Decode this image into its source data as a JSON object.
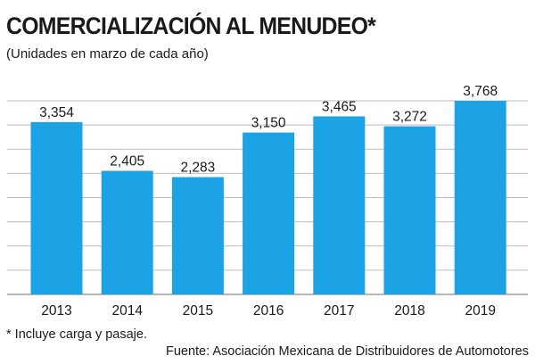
{
  "title": "COMERCIALIZACIÓN AL MENUDEO*",
  "subtitle": "(Unidades en marzo de cada año)",
  "footnote": "* Incluye carga y pasaje.",
  "source": "Fuente: Asociación Mexicana de Distribuidores de Automotores",
  "colors": {
    "bar": "#1ba3e6",
    "grid": "#bdbdbd",
    "background": "#ffffff"
  },
  "chart_data": {
    "type": "bar",
    "categories": [
      "2013",
      "2014",
      "2015",
      "2016",
      "2017",
      "2018",
      "2019"
    ],
    "values": [
      3354,
      2405,
      2283,
      3150,
      3465,
      3272,
      3768
    ],
    "value_labels": [
      "3,354",
      "2,405",
      "2,283",
      "3,150",
      "3,465",
      "3,272",
      "3,768"
    ],
    "title": "COMERCIALIZACIÓN AL MENUDEO*",
    "subtitle": "(Unidades en marzo de cada año)",
    "ylim": [
      0,
      3768
    ],
    "grid": true,
    "legend": "none"
  }
}
